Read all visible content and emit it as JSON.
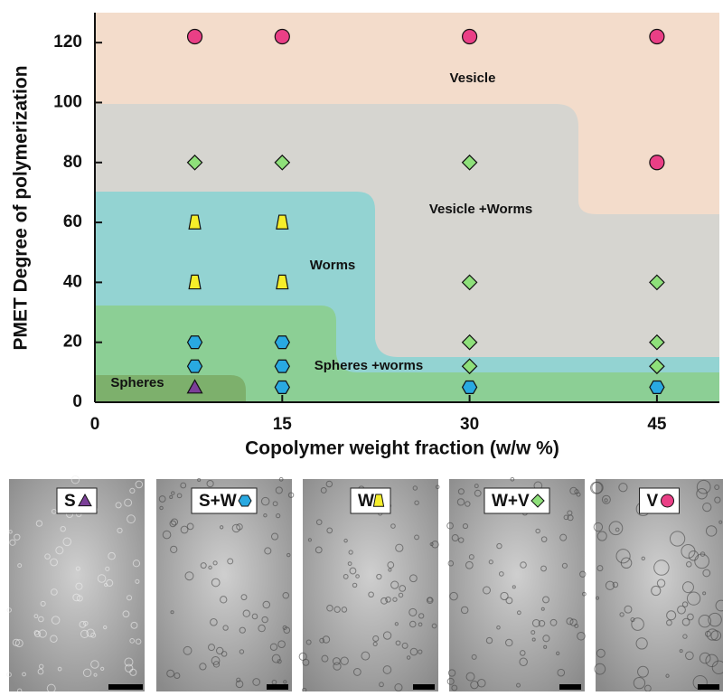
{
  "chart_data": {
    "type": "scatter",
    "xlabel": "Copolymer weight fraction (w/w %)",
    "ylabel": "PMET Degree of polymerization",
    "xlim": [
      0,
      50
    ],
    "ylim": [
      0,
      130
    ],
    "xticks": [
      0,
      15,
      30,
      45
    ],
    "yticks": [
      0,
      20,
      40,
      60,
      80,
      100,
      120
    ],
    "annotations": [
      "Vesicle",
      "Vesicle +Worms",
      "Worms",
      "Spheres +worms",
      "Spheres"
    ],
    "series": [
      {
        "name": "S",
        "color": "#7b3f98",
        "marker": "triangle",
        "x": [
          8
        ],
        "y": [
          5
        ]
      },
      {
        "name": "S+W",
        "color": "#29a9e1",
        "marker": "hexagon",
        "x": [
          8,
          15,
          8,
          15,
          15,
          30,
          45
        ],
        "y": [
          20,
          20,
          12,
          12,
          5,
          5,
          5
        ]
      },
      {
        "name": "W",
        "color": "#f5ee2a",
        "marker": "trapezoid",
        "x": [
          8,
          15,
          8,
          15
        ],
        "y": [
          60,
          60,
          40,
          40
        ]
      },
      {
        "name": "W+V",
        "color": "#8ee07a",
        "marker": "diamond",
        "x": [
          8,
          15,
          30,
          30,
          45,
          30,
          45,
          30,
          45
        ],
        "y": [
          80,
          80,
          80,
          40,
          40,
          20,
          20,
          12,
          12
        ]
      },
      {
        "name": "V",
        "color": "#ea3f86",
        "marker": "circle",
        "x": [
          8,
          15,
          30,
          45,
          45
        ],
        "y": [
          122,
          122,
          122,
          122,
          80
        ]
      }
    ]
  }
}
